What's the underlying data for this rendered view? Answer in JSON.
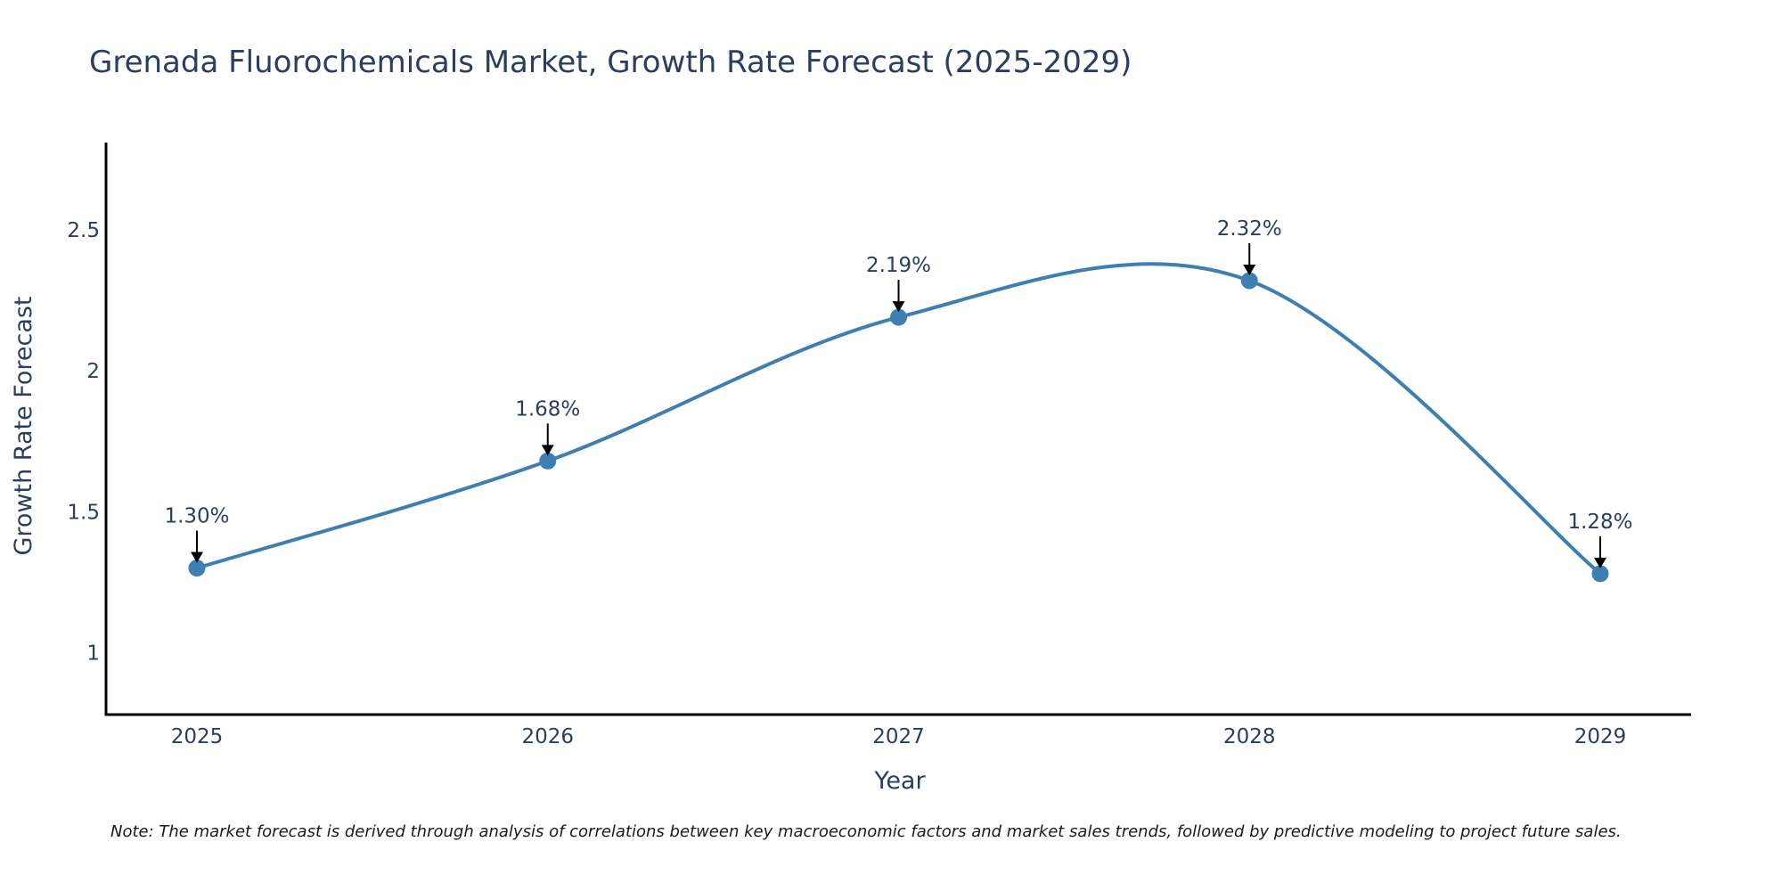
{
  "chart_data": {
    "type": "line",
    "title": "Grenada Fluorochemicals Market, Growth Rate Forecast (2025-2029)",
    "xlabel": "Year",
    "ylabel": "Growth Rate Forecast",
    "categories": [
      "2025",
      "2026",
      "2027",
      "2028",
      "2029"
    ],
    "series": [
      {
        "name": "Growth Rate Forecast",
        "values": [
          1.3,
          1.68,
          2.19,
          2.32,
          1.28
        ],
        "color": "#3d7fb0"
      }
    ],
    "data_labels": [
      "1.30%",
      "1.68%",
      "2.19%",
      "2.32%",
      "1.28%"
    ],
    "ylim": [
      0.78,
      2.81
    ],
    "yticks": [
      1,
      1.5,
      2,
      2.5
    ],
    "ytick_labels": [
      "1",
      "1.5",
      "2",
      "2.5"
    ],
    "grid": false,
    "note": "Note: The market forecast is derived through analysis of correlations between key macroeconomic factors and market sales trends, followed by predictive modeling to project future sales."
  }
}
